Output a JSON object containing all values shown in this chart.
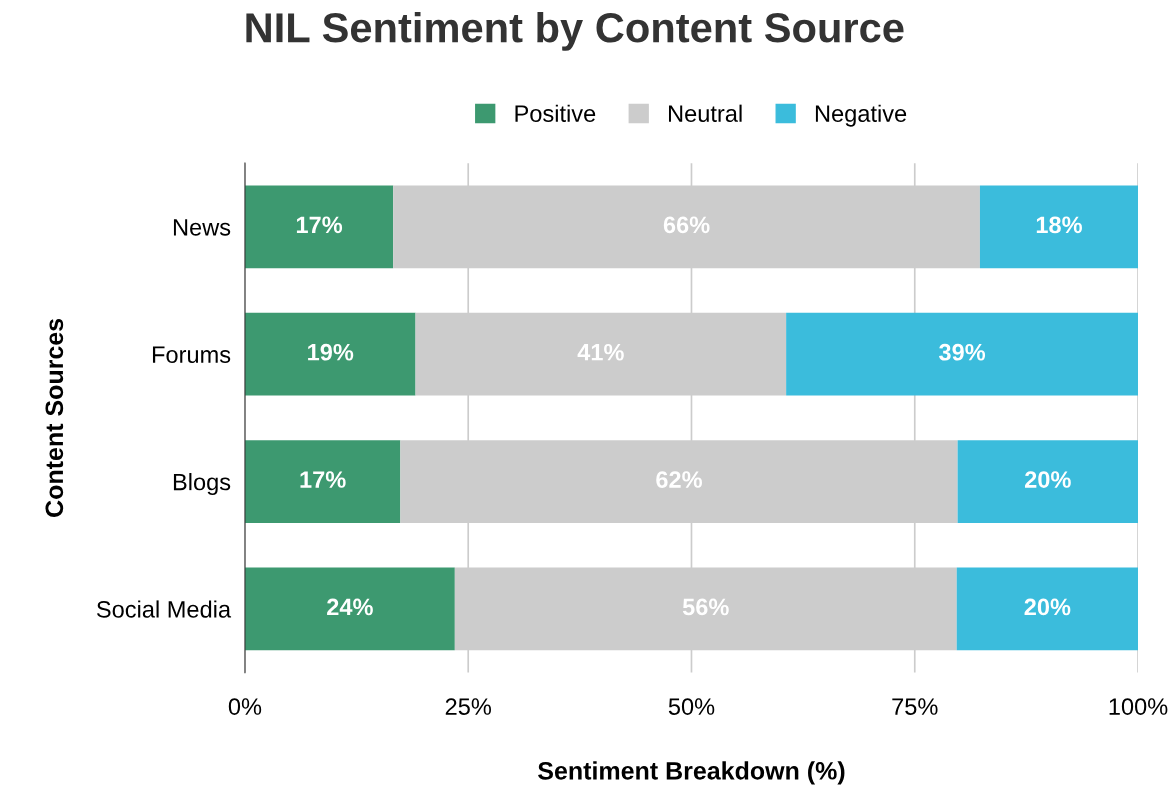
{
  "chart_data": {
    "type": "bar",
    "orientation": "horizontal",
    "stacked": true,
    "title": "NIL Sentiment by Content Source",
    "xlabel": "Sentiment Breakdown (%)",
    "ylabel": "Content Sources",
    "categories": [
      "News",
      "Forums",
      "Blogs",
      "Social Media"
    ],
    "series": [
      {
        "name": "Positive",
        "color": "#3d9970",
        "values": [
          16.6,
          19.1,
          17.4,
          23.5
        ],
        "value_labels": [
          "17%",
          "19%",
          "17%",
          "24%"
        ]
      },
      {
        "name": "Neutral",
        "color": "#cccccc",
        "values": [
          65.7,
          41.5,
          62.4,
          56.2
        ],
        "value_labels": [
          "66%",
          "41%",
          "62%",
          "56%"
        ]
      },
      {
        "name": "Negative",
        "color": "#3bbcdc",
        "values": [
          17.7,
          39.4,
          20.2,
          20.3
        ],
        "value_labels": [
          "18%",
          "39%",
          "20%",
          "20%"
        ]
      }
    ],
    "xlim": [
      0,
      100
    ],
    "xticks": [
      {
        "value": 0,
        "label": "0%"
      },
      {
        "value": 25,
        "label": "25%"
      },
      {
        "value": 50,
        "label": "50%"
      },
      {
        "value": 75,
        "label": "75%"
      },
      {
        "value": 100,
        "label": "100%"
      }
    ],
    "grid": "x",
    "legend": "top"
  }
}
